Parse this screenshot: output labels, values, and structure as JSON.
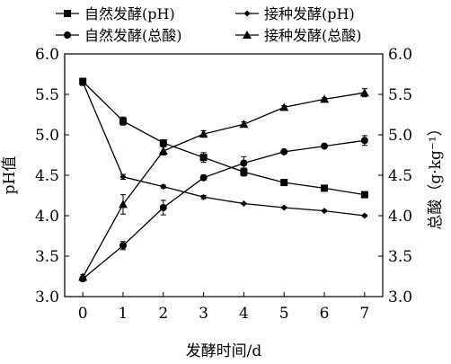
{
  "chart_data": {
    "type": "line",
    "title": "",
    "xlabel": "发酵时间/d",
    "ylabel": "pH值",
    "y2label": "总酸（g·kg⁻¹）",
    "x": [
      0,
      1,
      2,
      3,
      4,
      5,
      6,
      7
    ],
    "xlim": [
      -0.45,
      7.45
    ],
    "ylim": [
      3.0,
      6.0
    ],
    "y2lim": [
      3.0,
      6.0
    ],
    "xticks": [
      "0",
      "1",
      "2",
      "3",
      "4",
      "5",
      "6",
      "7"
    ],
    "yticks": [
      "3.0",
      "3.5",
      "4.0",
      "4.5",
      "5.0",
      "5.5",
      "6.0"
    ],
    "y2ticks": [
      "3.0",
      "3.5",
      "4.0",
      "4.5",
      "5.0",
      "5.5",
      "6.0"
    ],
    "grid": false,
    "legend_position": "top",
    "series": [
      {
        "name": "自然发酵(pH)",
        "axis": "left",
        "marker": "square",
        "values": [
          5.66,
          5.17,
          4.9,
          4.72,
          4.54,
          4.41,
          4.34,
          4.26
        ],
        "errors": [
          0.04,
          0.05,
          0.03,
          0.06,
          0.05,
          0.02,
          0.03,
          0.03
        ]
      },
      {
        "name": "接种发酵(pH)",
        "axis": "left",
        "marker": "diamond",
        "values": [
          5.65,
          4.48,
          4.36,
          4.23,
          4.15,
          4.1,
          4.06,
          4.0
        ],
        "errors": [
          0.04,
          0.03,
          0.02,
          0.02,
          0.01,
          0.01,
          0.01,
          0.01
        ]
      },
      {
        "name": "自然发酵(总酸)",
        "axis": "right",
        "marker": "circle",
        "values": [
          3.22,
          3.63,
          4.1,
          4.47,
          4.65,
          4.79,
          4.86,
          4.93
        ],
        "errors": [
          0.03,
          0.05,
          0.09,
          0.03,
          0.08,
          0.02,
          0.02,
          0.06
        ]
      },
      {
        "name": "接种发酵(总酸)",
        "axis": "right",
        "marker": "triangle",
        "values": [
          3.24,
          4.14,
          4.8,
          5.01,
          5.13,
          5.34,
          5.44,
          5.52
        ],
        "errors": [
          0.03,
          0.12,
          0.05,
          0.04,
          0.03,
          0.02,
          0.02,
          0.05
        ]
      }
    ]
  }
}
